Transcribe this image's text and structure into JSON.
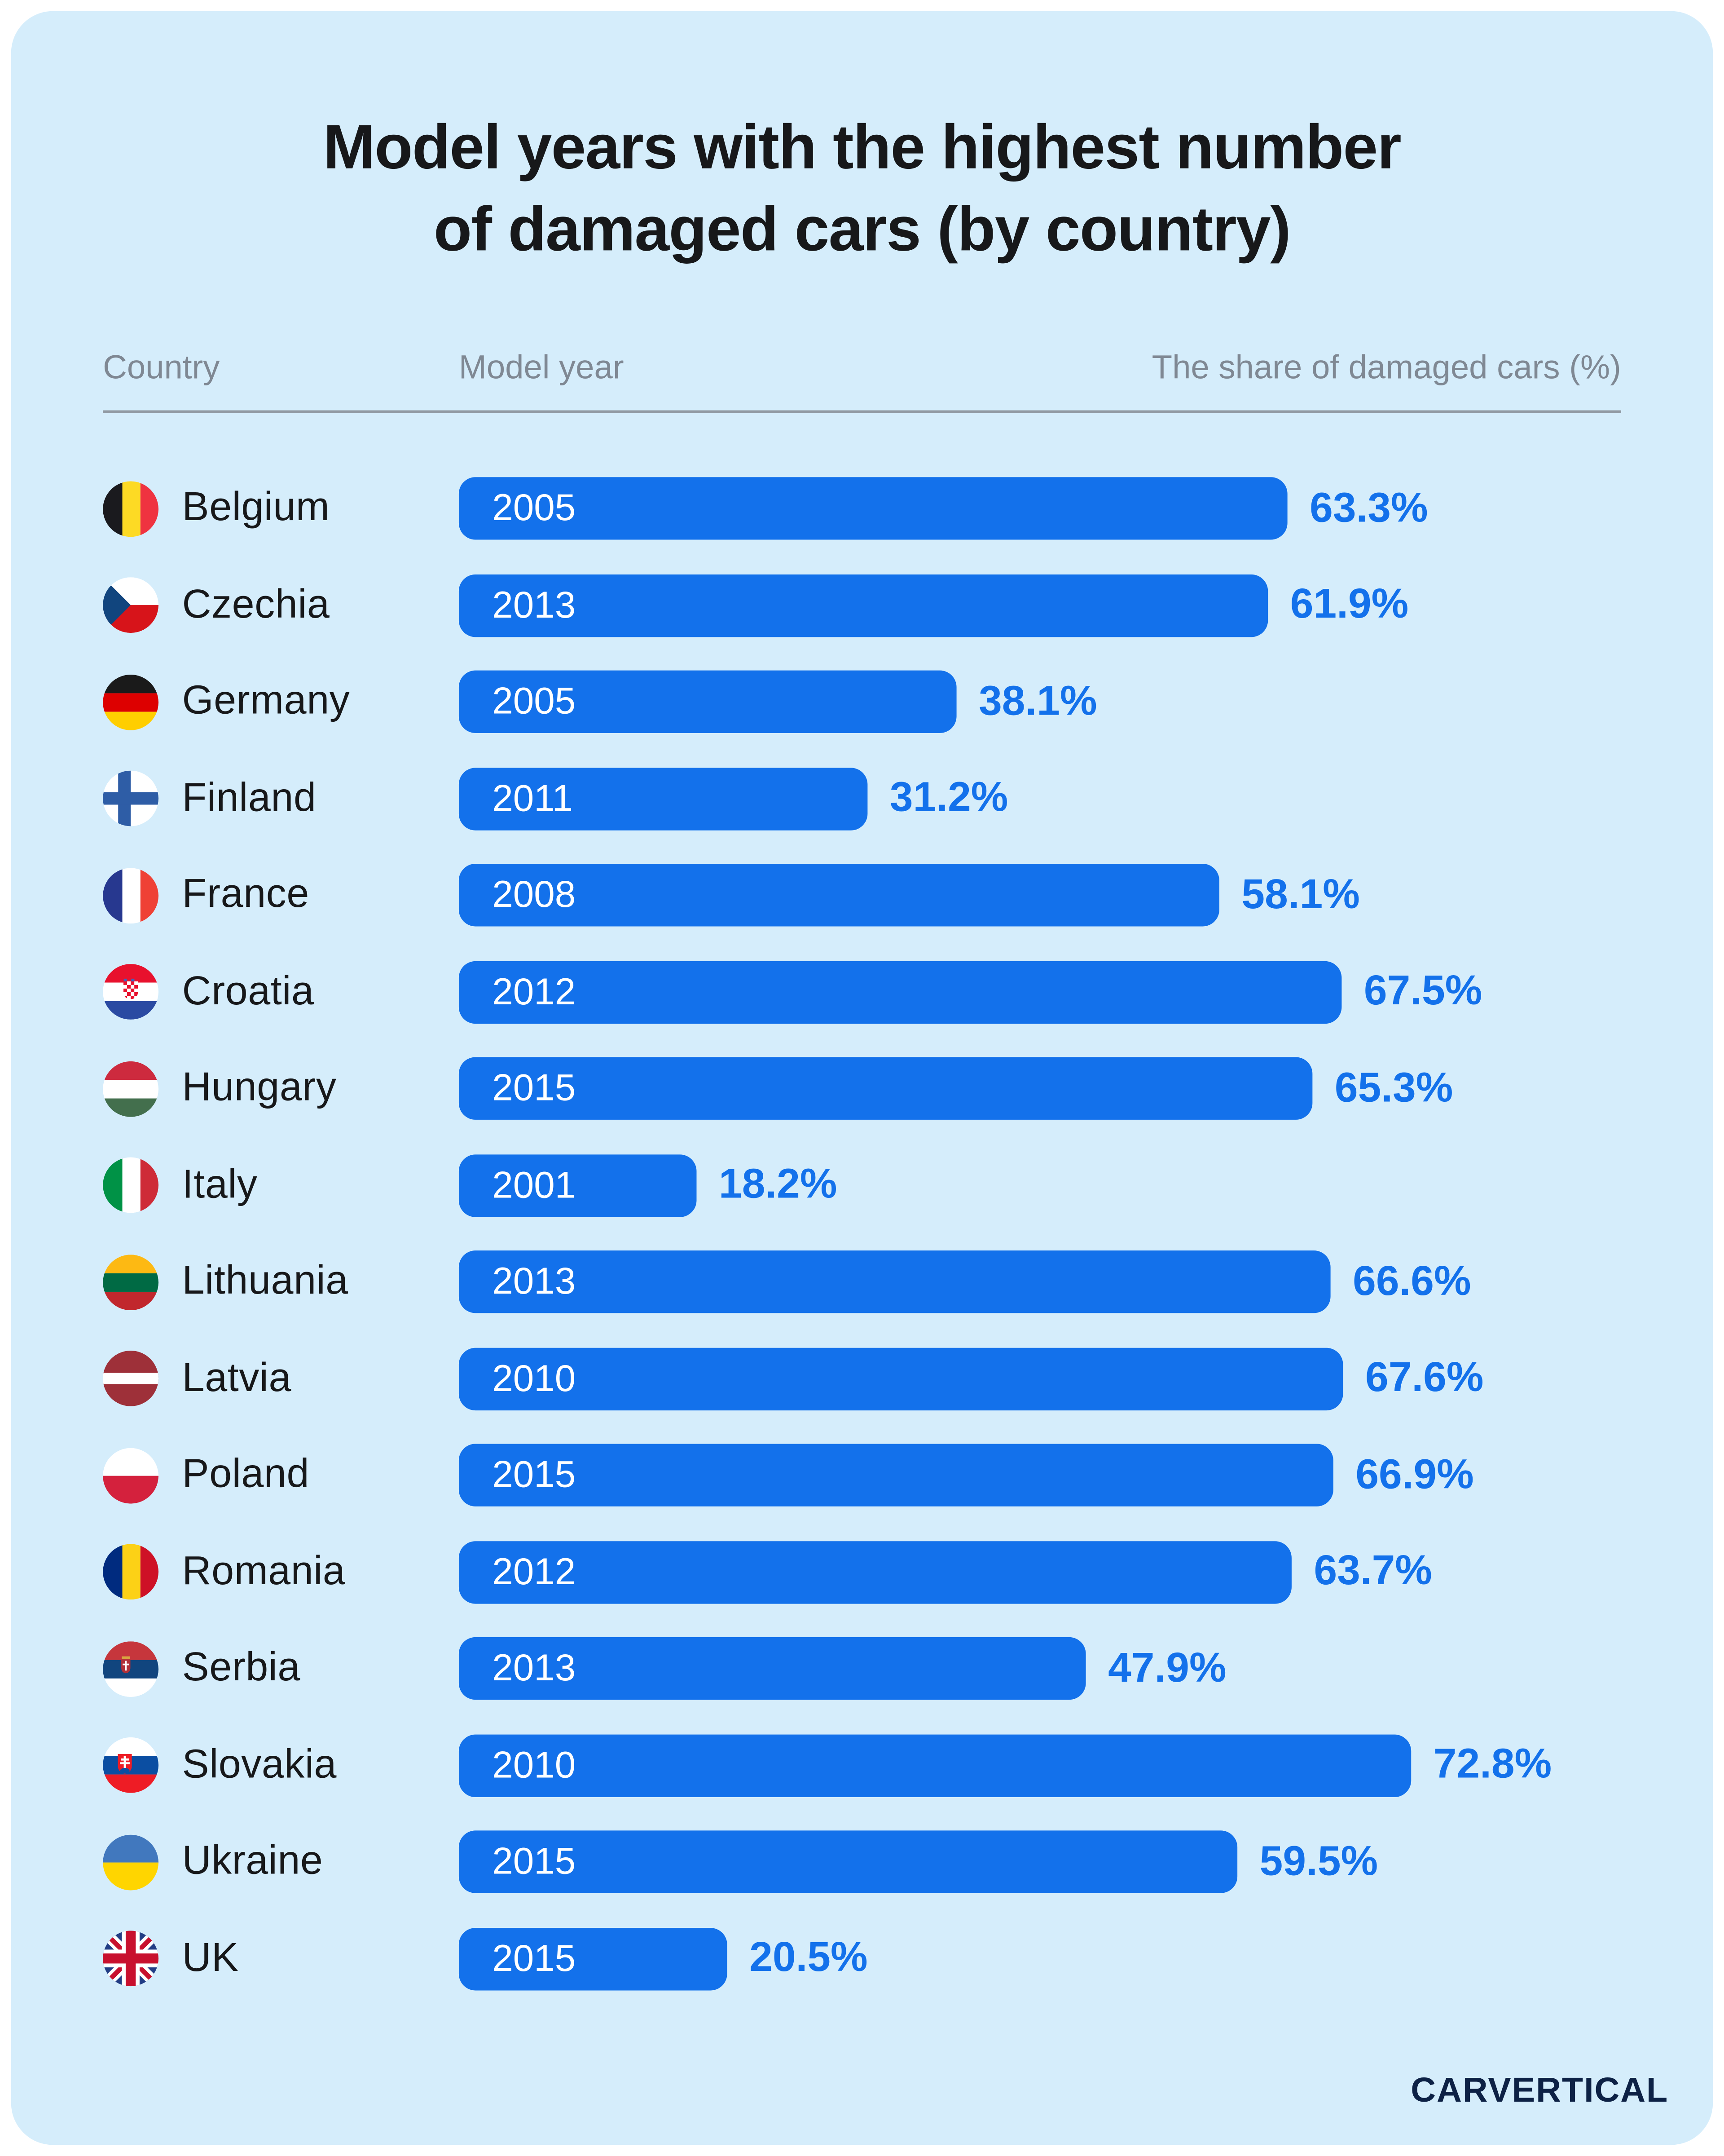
{
  "colors": {
    "background": "#D5EDFB",
    "bar": "#1371EB",
    "title": "#17181A",
    "muted": "#7F8893",
    "logo": "#0D2145"
  },
  "page": {
    "title_line1": "Model years with the highest number",
    "title_line2": "of damaged cars (by country)",
    "logo_text": "CARVERTICAL"
  },
  "table_headers": {
    "country": "Country",
    "model_year": "Model year",
    "share": "The share of damaged cars (%)"
  },
  "chart_data": {
    "type": "bar",
    "title": "Model years with the highest number of damaged cars (by country)",
    "xlabel": "The share of damaged cars (%)",
    "ylabel": "Country",
    "xlim": [
      0,
      76
    ],
    "grid": false,
    "legend": false,
    "rows": [
      {
        "country": "Belgium",
        "year": "2005",
        "share": 63.3,
        "share_label": "63.3%",
        "flag_icon": "belgium-flag-icon"
      },
      {
        "country": "Czechia",
        "year": "2013",
        "share": 61.9,
        "share_label": "61.9%",
        "flag_icon": "czechia-flag-icon"
      },
      {
        "country": "Germany",
        "year": "2005",
        "share": 38.1,
        "share_label": "38.1%",
        "flag_icon": "germany-flag-icon"
      },
      {
        "country": "Finland",
        "year": "2011",
        "share": 31.2,
        "share_label": "31.2%",
        "flag_icon": "finland-flag-icon"
      },
      {
        "country": "France",
        "year": "2008",
        "share": 58.1,
        "share_label": "58.1%",
        "flag_icon": "france-flag-icon"
      },
      {
        "country": "Croatia",
        "year": "2012",
        "share": 67.5,
        "share_label": "67.5%",
        "flag_icon": "croatia-flag-icon"
      },
      {
        "country": "Hungary",
        "year": "2015",
        "share": 65.3,
        "share_label": "65.3%",
        "flag_icon": "hungary-flag-icon"
      },
      {
        "country": "Italy",
        "year": "2001",
        "share": 18.2,
        "share_label": "18.2%",
        "flag_icon": "italy-flag-icon"
      },
      {
        "country": "Lithuania",
        "year": "2013",
        "share": 66.6,
        "share_label": "66.6%",
        "flag_icon": "lithuania-flag-icon"
      },
      {
        "country": "Latvia",
        "year": "2010",
        "share": 67.6,
        "share_label": "67.6%",
        "flag_icon": "latvia-flag-icon"
      },
      {
        "country": "Poland",
        "year": "2015",
        "share": 66.9,
        "share_label": "66.9%",
        "flag_icon": "poland-flag-icon"
      },
      {
        "country": "Romania",
        "year": "2012",
        "share": 63.7,
        "share_label": "63.7%",
        "flag_icon": "romania-flag-icon"
      },
      {
        "country": "Serbia",
        "year": "2013",
        "share": 47.9,
        "share_label": "47.9%",
        "flag_icon": "serbia-flag-icon"
      },
      {
        "country": "Slovakia",
        "year": "2010",
        "share": 72.8,
        "share_label": "72.8%",
        "flag_icon": "slovakia-flag-icon"
      },
      {
        "country": "Ukraine",
        "year": "2015",
        "share": 59.5,
        "share_label": "59.5%",
        "flag_icon": "ukraine-flag-icon"
      },
      {
        "country": "UK",
        "year": "2015",
        "share": 20.5,
        "share_label": "20.5%",
        "flag_icon": "uk-flag-icon"
      }
    ]
  }
}
